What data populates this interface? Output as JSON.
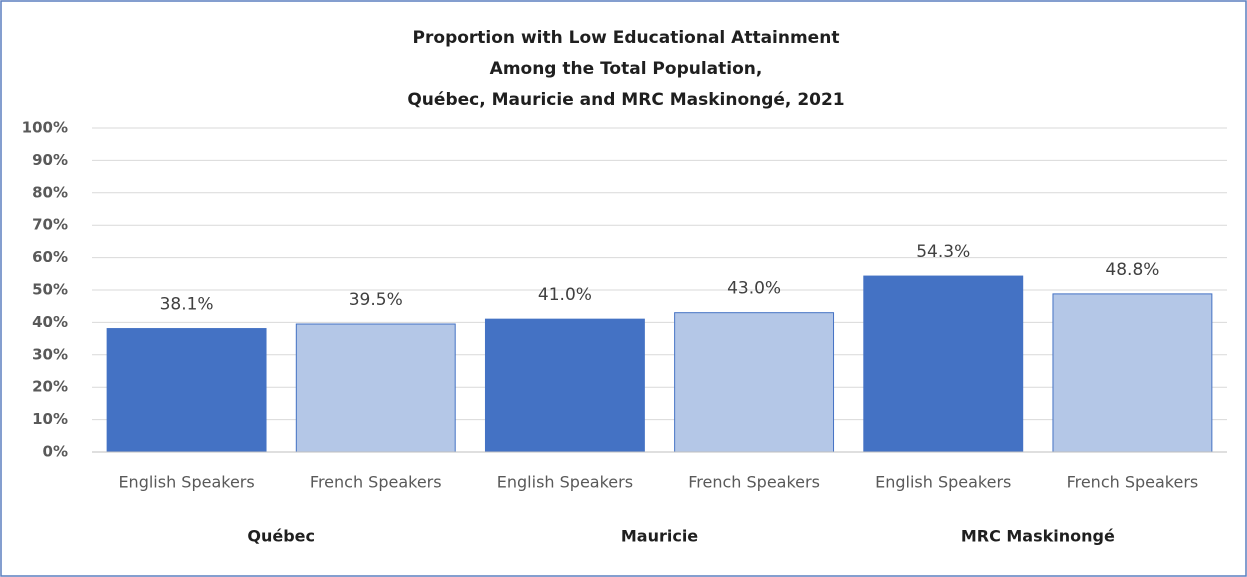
{
  "chart_data": {
    "type": "bar",
    "title": [
      "Proportion with Low Educational  Attainment",
      "Among the Total Population,",
      "Québec, Mauricie and MRC Maskinongé,  2021"
    ],
    "categories": [
      "Québec",
      "Mauricie",
      "MRC Maskinongé"
    ],
    "series": [
      {
        "name": "English Speakers",
        "color": "#4472c4",
        "values": [
          38.1,
          41.0,
          54.3
        ],
        "value_labels": [
          "38.1%",
          "41.0%",
          "54.3%"
        ]
      },
      {
        "name": "French Speakers",
        "color": "#b4c7e7",
        "values": [
          39.5,
          43.0,
          48.8
        ],
        "value_labels": [
          "39.5%",
          "43.0%",
          "48.8%"
        ]
      }
    ],
    "ylim": [
      0,
      100
    ],
    "yticks": [
      {
        "value": 0,
        "label": "0%"
      },
      {
        "value": 10,
        "label": "10%"
      },
      {
        "value": 20,
        "label": "20%"
      },
      {
        "value": 30,
        "label": "30%"
      },
      {
        "value": 40,
        "label": "40%"
      },
      {
        "value": 50,
        "label": "50%"
      },
      {
        "value": 60,
        "label": "60%"
      },
      {
        "value": 70,
        "label": "70%"
      },
      {
        "value": 80,
        "label": "80%"
      },
      {
        "value": 90,
        "label": "90%"
      },
      {
        "value": 100,
        "label": "100%"
      }
    ],
    "grid": true
  }
}
